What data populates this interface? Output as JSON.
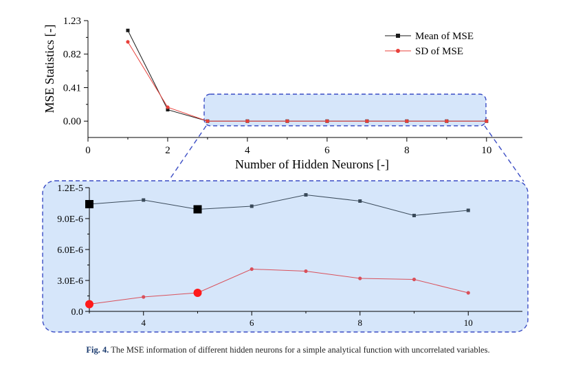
{
  "caption": {
    "label": "Fig. 4.",
    "text": " The MSE information of different hidden neurons for a simple analytical function with uncorrelated variables."
  },
  "colors": {
    "mean": "#1a1a1a",
    "sd": "#e8403a",
    "highlight_fill": "#d6e6fa",
    "highlight_border": "#3a4cc4",
    "inset_mean": "#3a4a5a",
    "inset_sd": "#d9505a"
  },
  "chart_data": [
    {
      "type": "line",
      "ylabel": "MSE Statistics [-]",
      "xlabel": "Number of Hidden Neurons [-]",
      "xlim": [
        0,
        10.9
      ],
      "ylim": [
        -0.2,
        1.23
      ],
      "x_ticks": [
        0,
        2,
        4,
        6,
        8,
        10
      ],
      "y_ticks": [
        "0.00",
        "0.41",
        "0.82",
        "1.23"
      ],
      "legend_position": "top-right",
      "x": [
        1,
        2,
        3,
        4,
        5,
        6,
        7,
        8,
        9,
        10
      ],
      "series": [
        {
          "name": "Mean of MSE",
          "marker": "square",
          "values": [
            1.11,
            0.14,
            0.0,
            0.0,
            0.0,
            0.0,
            0.0,
            0.0,
            0.0,
            0.0
          ]
        },
        {
          "name": "SD of MSE",
          "marker": "circle",
          "values": [
            0.97,
            0.17,
            0.0,
            0.0,
            0.0,
            0.0,
            0.0,
            0.0,
            0.0,
            0.0
          ]
        }
      ]
    },
    {
      "type": "line",
      "xlim": [
        3,
        11
      ],
      "ylim": [
        0,
        1.2e-05
      ],
      "x_ticks": [
        4,
        6,
        8,
        10
      ],
      "y_ticks": [
        "0.0",
        "3.0E-6",
        "6.0E-6",
        "9.0E-6",
        "1.2E-5"
      ],
      "x": [
        3,
        4,
        5,
        6,
        7,
        8,
        9,
        10
      ],
      "series": [
        {
          "marker": "square",
          "values": [
            1.04e-05,
            1.08e-05,
            9.9e-06,
            1.02e-05,
            1.13e-05,
            1.07e-05,
            9.3e-06,
            9.8e-06
          ],
          "highlight_x": [
            3,
            5
          ]
        },
        {
          "marker": "circle",
          "values": [
            7e-07,
            1.4e-06,
            1.8e-06,
            4.1e-06,
            3.9e-06,
            3.2e-06,
            3.1e-06,
            1.8e-06
          ],
          "highlight_x": [
            3,
            5
          ]
        }
      ]
    }
  ]
}
